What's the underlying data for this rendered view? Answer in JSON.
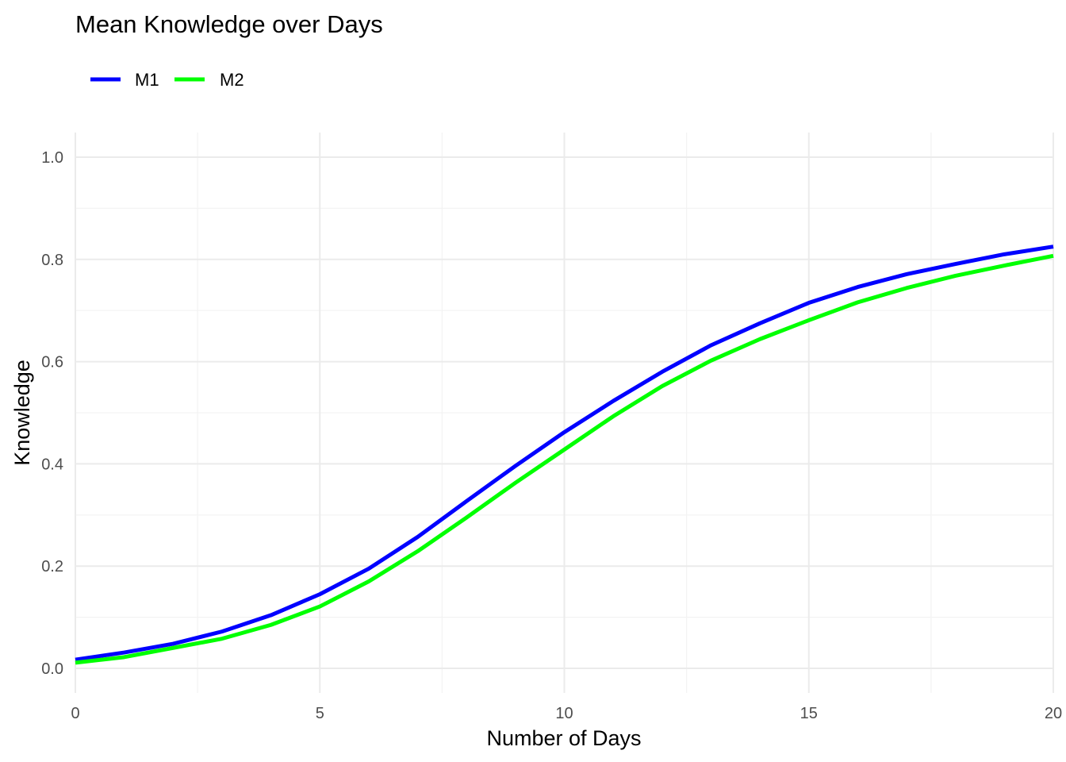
{
  "chart_data": {
    "type": "line",
    "title": "Mean Knowledge over Days",
    "xlabel": "Number of Days",
    "ylabel": "Knowledge",
    "xlim": [
      0,
      20
    ],
    "ylim": [
      0,
      1
    ],
    "x_ticks": [
      "0",
      "5",
      "10",
      "15",
      "20"
    ],
    "y_ticks": [
      "0.0",
      "0.2",
      "0.4",
      "0.6",
      "0.8",
      "1.0"
    ],
    "grid": true,
    "legend_position": "top-left",
    "x": [
      0,
      1,
      2,
      3,
      4,
      5,
      6,
      7,
      8,
      9,
      10,
      11,
      12,
      13,
      14,
      15,
      16,
      17,
      18,
      19,
      20
    ],
    "series": [
      {
        "name": "M1",
        "color": "#0000ff",
        "values": [
          0.017,
          0.031,
          0.048,
          0.072,
          0.104,
          0.145,
          0.195,
          0.257,
          0.327,
          0.396,
          0.462,
          0.523,
          0.58,
          0.632,
          0.675,
          0.715,
          0.746,
          0.771,
          0.791,
          0.81,
          0.825
        ]
      },
      {
        "name": "M2",
        "color": "#00ff00",
        "values": [
          0.011,
          0.022,
          0.04,
          0.058,
          0.085,
          0.121,
          0.17,
          0.229,
          0.295,
          0.363,
          0.428,
          0.493,
          0.552,
          0.602,
          0.644,
          0.681,
          0.716,
          0.744,
          0.768,
          0.788,
          0.807
        ]
      }
    ]
  }
}
